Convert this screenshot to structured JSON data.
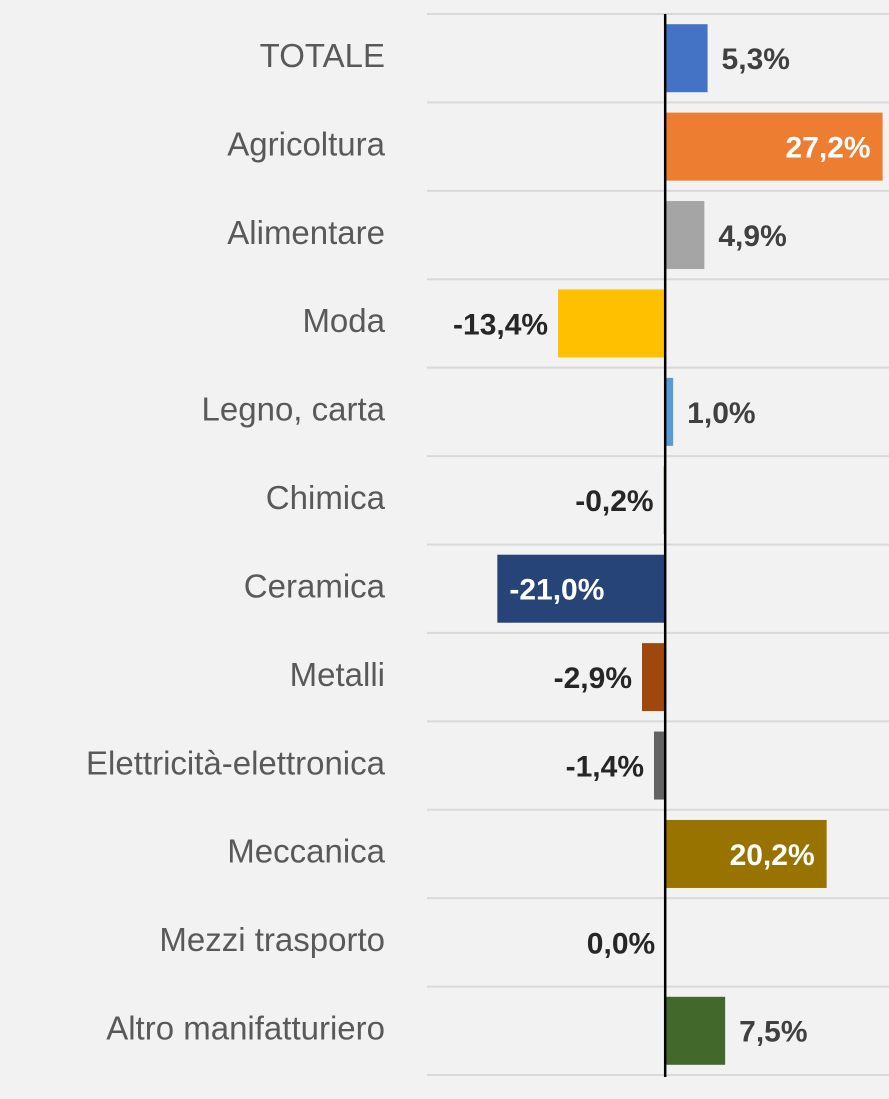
{
  "chart_data": {
    "type": "hbar",
    "categories": [
      "TOTALE",
      "Agricoltura",
      "Alimentare",
      "Moda",
      "Legno, carta",
      "Chimica",
      "Ceramica",
      "Metalli",
      "Elettricità-elettronica",
      "Meccanica",
      "Mezzi trasporto",
      "Altro manifatturiero"
    ],
    "values": [
      5.3,
      27.2,
      4.9,
      -13.4,
      1.0,
      -0.2,
      -21.0,
      -2.9,
      -1.4,
      20.2,
      0.0,
      7.5
    ],
    "value_labels": [
      "5,3%",
      "27,2%",
      "4,9%",
      "-13,4%",
      "1,0%",
      "-0,2%",
      "-21,0%",
      "-2,9%",
      "-1,4%",
      "20,2%",
      "0,0%",
      "7,5%"
    ],
    "colors": [
      "#4472c4",
      "#ed7d31",
      "#a5a5a5",
      "#ffc000",
      "#5b9bd5",
      "#70ad47",
      "#264478",
      "#9e480e",
      "#636363",
      "#997300",
      "#255e91",
      "#43682b"
    ],
    "xlim": [
      -29.8,
      28
    ]
  }
}
